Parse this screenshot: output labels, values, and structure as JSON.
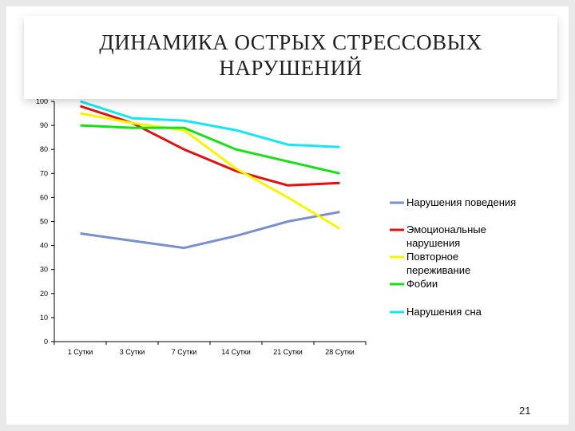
{
  "title": {
    "line1": "ДИНАМИКА ОСТРЫХ СТРЕССОВЫХ",
    "line2": "НАРУШЕНИЙ"
  },
  "page_number": "21",
  "chart_data": {
    "type": "line",
    "categories": [
      "1 Сутки",
      "3 Сутки",
      "7 Сутки",
      "14 Сутки",
      "21 Сутки",
      "28 Сутки"
    ],
    "ylim": [
      0,
      100
    ],
    "yticks": [
      0,
      10,
      20,
      30,
      40,
      50,
      60,
      70,
      80,
      90,
      100
    ],
    "grid": false,
    "legend_position": "right",
    "series": [
      {
        "name": "Нарушения поведения",
        "color": "#7b8fd0",
        "values": [
          45,
          42,
          39,
          44,
          50,
          54
        ]
      },
      {
        "name": "Эмоциональные нарушения",
        "color": "#e01010",
        "values": [
          98,
          91,
          80,
          71,
          65,
          66
        ]
      },
      {
        "name": "Повторное переживание",
        "color": "#f5f500",
        "values": [
          95,
          91,
          88,
          72,
          60,
          47
        ]
      },
      {
        "name": "Фобии",
        "color": "#18e018",
        "values": [
          90,
          89,
          89,
          80,
          75,
          70
        ]
      },
      {
        "name": "Нарушения сна",
        "color": "#14e6f5",
        "values": [
          100,
          93,
          92,
          88,
          82,
          81
        ]
      }
    ]
  }
}
